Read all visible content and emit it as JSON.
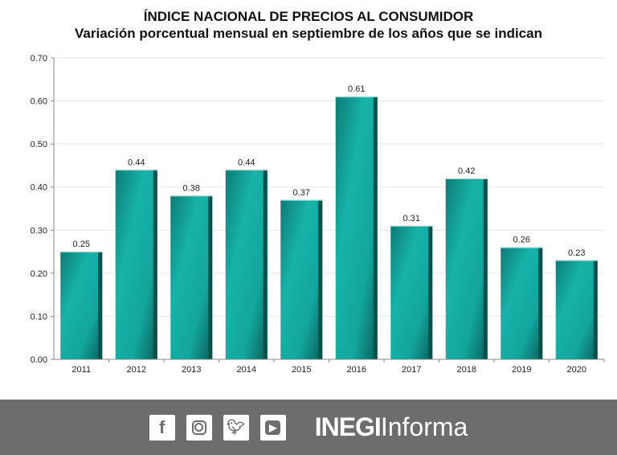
{
  "chart_data": {
    "type": "bar",
    "title": "ÍNDICE NACIONAL DE PRECIOS AL CONSUMIDOR",
    "subtitle": "Variación porcentual mensual en septiembre de los años que se indican",
    "categories": [
      "2011",
      "2012",
      "2013",
      "2014",
      "2015",
      "2016",
      "2017",
      "2018",
      "2019",
      "2020"
    ],
    "values": [
      0.25,
      0.44,
      0.38,
      0.44,
      0.37,
      0.61,
      0.31,
      0.42,
      0.26,
      0.23
    ],
    "data_labels": [
      "0.25",
      "0.44",
      "0.38",
      "0.44",
      "0.37",
      "0.61",
      "0.31",
      "0.42",
      "0.26",
      "0.23"
    ],
    "ylim": [
      0,
      0.7
    ],
    "yticks": [
      "0.00",
      "0.10",
      "0.20",
      "0.30",
      "0.40",
      "0.50",
      "0.60",
      "0.70"
    ],
    "grid": true,
    "bar_color": "#14a89f"
  },
  "footer": {
    "icons": [
      "facebook-icon",
      "instagram-icon",
      "twitter-icon",
      "youtube-icon"
    ],
    "brand_bold": "INEGI",
    "brand_light": "Informa",
    "background": "#6d6d6d"
  }
}
